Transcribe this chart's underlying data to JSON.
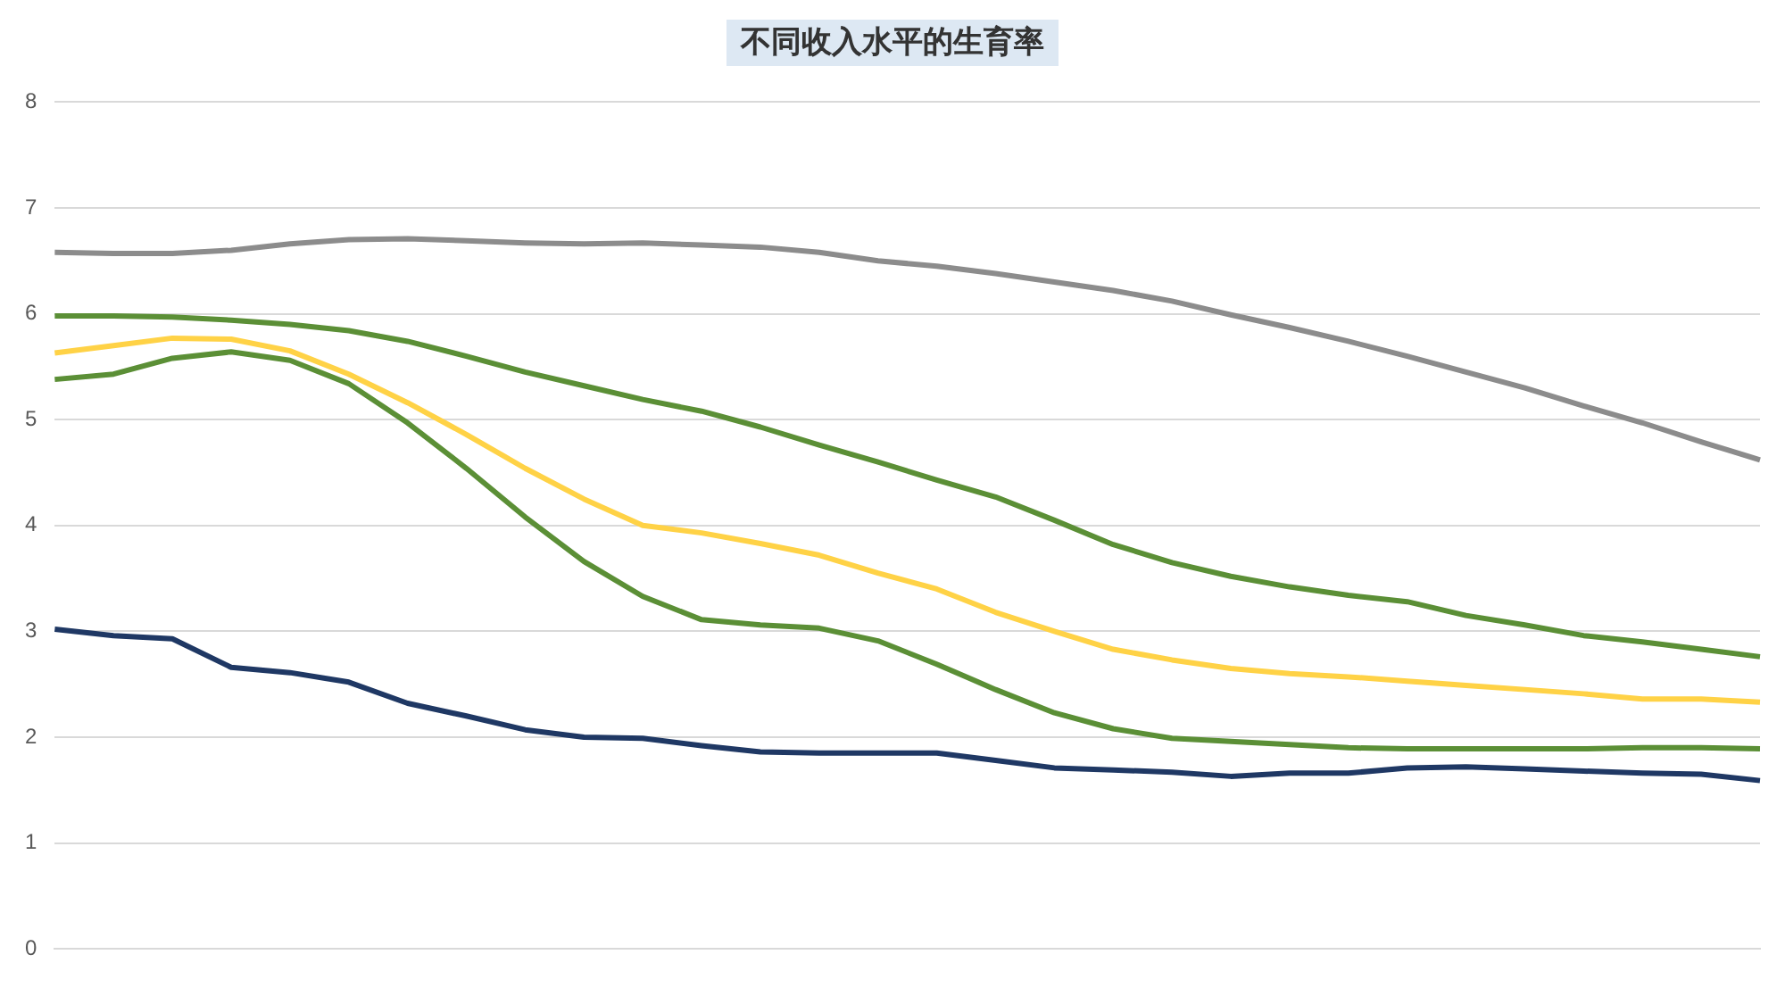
{
  "chart_data": {
    "type": "line",
    "title": "不同收入水平的生育率",
    "categories": [
      null,
      null,
      null,
      null,
      null,
      null,
      null,
      null,
      null,
      null,
      null,
      null,
      null,
      null,
      null,
      null,
      null,
      null,
      null,
      null,
      null,
      null,
      null,
      null,
      null,
      null,
      null,
      null,
      null,
      null
    ],
    "series": [
      {
        "color": "#8c8c8c",
        "values": [
          6.58,
          6.57,
          6.57,
          6.6,
          6.66,
          6.7,
          6.71,
          6.69,
          6.67,
          6.66,
          6.67,
          6.65,
          6.63,
          6.58,
          6.5,
          6.45,
          6.38,
          6.3,
          6.22,
          6.12,
          5.99,
          5.87,
          5.74,
          5.6,
          5.45,
          5.3,
          5.13,
          4.97,
          4.79,
          4.62
        ]
      },
      {
        "color": "#5b8f36",
        "values": [
          5.98,
          5.98,
          5.97,
          5.94,
          5.9,
          5.84,
          5.74,
          5.6,
          5.45,
          5.32,
          5.19,
          5.08,
          4.93,
          4.76,
          4.6,
          4.43,
          4.27,
          4.05,
          3.82,
          3.65,
          3.52,
          3.42,
          3.34,
          3.28,
          3.15,
          3.06,
          2.96,
          2.9,
          2.83,
          2.76
        ]
      },
      {
        "color": "#ffd246",
        "values": [
          5.63,
          5.7,
          5.77,
          5.76,
          5.65,
          5.43,
          5.16,
          4.86,
          4.54,
          4.25,
          4.0,
          3.93,
          3.83,
          3.72,
          3.55,
          3.4,
          3.18,
          3.0,
          2.83,
          2.73,
          2.65,
          2.6,
          2.57,
          2.53,
          2.49,
          2.45,
          2.41,
          2.36,
          2.36,
          2.33
        ]
      },
      {
        "color": "#5b8f36",
        "values": [
          5.38,
          5.43,
          5.58,
          5.64,
          5.56,
          5.34,
          4.97,
          4.54,
          4.08,
          3.66,
          3.33,
          3.11,
          3.06,
          3.03,
          2.91,
          2.69,
          2.45,
          2.23,
          2.08,
          1.99,
          1.96,
          1.93,
          1.9,
          1.89,
          1.89,
          1.89,
          1.89,
          1.9,
          1.9,
          1.89
        ]
      },
      {
        "color": "#1f3864",
        "values": [
          3.02,
          2.96,
          2.93,
          2.66,
          2.61,
          2.52,
          2.32,
          2.2,
          2.07,
          2.0,
          1.99,
          1.92,
          1.86,
          1.85,
          1.85,
          1.85,
          1.78,
          1.71,
          1.69,
          1.67,
          1.63,
          1.66,
          1.66,
          1.71,
          1.72,
          1.7,
          1.68,
          1.66,
          1.65,
          1.59
        ]
      }
    ],
    "ylim": [
      0,
      8
    ],
    "yticks": [
      0,
      1,
      2,
      3,
      4,
      5,
      6,
      7,
      8
    ],
    "grid": "y",
    "marker": "none",
    "line_style": "solid",
    "legend": false
  }
}
